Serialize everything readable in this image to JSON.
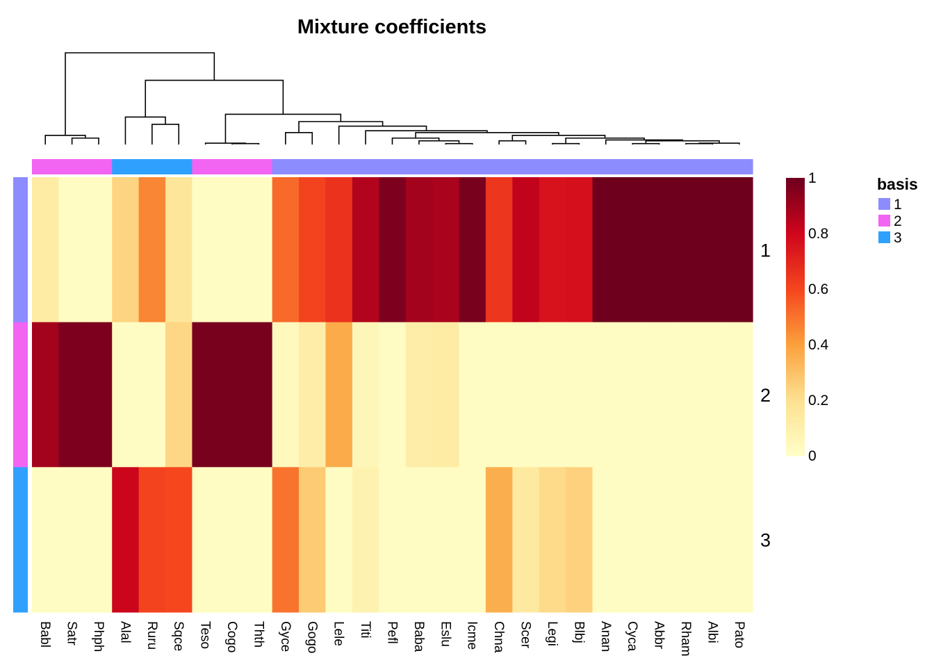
{
  "chart_data": {
    "type": "heatmap",
    "title": "Mixture coefficients",
    "columns": [
      "Babl",
      "Satr",
      "Phph",
      "Alal",
      "Ruru",
      "Sqce",
      "Teso",
      "Cogo",
      "Thth",
      "Gyce",
      "Gogo",
      "Lele",
      "Titi",
      "Pefl",
      "Baba",
      "Eslu",
      "Icme",
      "Chna",
      "Scer",
      "Legi",
      "Blbj",
      "Anan",
      "Cyca",
      "Abbr",
      "Rham",
      "Albi",
      "Pato"
    ],
    "rows": [
      "1",
      "2",
      "3"
    ],
    "column_basis": [
      "2",
      "2",
      "2",
      "3",
      "3",
      "3",
      "2",
      "2",
      "2",
      "1",
      "1",
      "1",
      "1",
      "1",
      "1",
      "1",
      "1",
      "1",
      "1",
      "1",
      "1",
      "1",
      "1",
      "1",
      "1",
      "1",
      "1"
    ],
    "values": [
      [
        0.13,
        0.02,
        0.02,
        0.24,
        0.46,
        0.17,
        0.02,
        0.02,
        0.02,
        0.52,
        0.61,
        0.66,
        0.86,
        0.97,
        0.89,
        0.88,
        0.98,
        0.65,
        0.83,
        0.76,
        0.77,
        1.0,
        1.0,
        1.0,
        1.0,
        1.0,
        1.0
      ],
      [
        0.89,
        0.97,
        0.97,
        0.02,
        0.02,
        0.23,
        0.98,
        0.98,
        0.98,
        0.04,
        0.12,
        0.37,
        0.06,
        0.02,
        0.12,
        0.13,
        0.02,
        0.02,
        0.02,
        0.02,
        0.02,
        0.02,
        0.02,
        0.02,
        0.02,
        0.02,
        0.02
      ],
      [
        0.02,
        0.02,
        0.02,
        0.81,
        0.61,
        0.6,
        0.02,
        0.02,
        0.02,
        0.5,
        0.27,
        0.02,
        0.09,
        0.02,
        0.02,
        0.02,
        0.02,
        0.36,
        0.15,
        0.22,
        0.25,
        0.02,
        0.02,
        0.02,
        0.02,
        0.02,
        0.02
      ]
    ],
    "colorscale": {
      "min": 0,
      "max": 1,
      "stops": [
        [
          0,
          "#FFFFC8"
        ],
        [
          0.2,
          "#FDE192"
        ],
        [
          0.4,
          "#FBA13D"
        ],
        [
          0.6,
          "#F5461E"
        ],
        [
          0.8,
          "#D0051C"
        ],
        [
          1,
          "#6E001E"
        ]
      ],
      "ticks": [
        "0",
        "0.2",
        "0.4",
        "0.6",
        "0.8",
        "1"
      ]
    },
    "legend": {
      "title": "basis",
      "items": [
        {
          "label": "1",
          "color": "#8C8CFF"
        },
        {
          "label": "2",
          "color": "#F264F2"
        },
        {
          "label": "3",
          "color": "#30A0FF"
        }
      ],
      "placement": "right"
    },
    "dendrogram": {
      "leaf_order": [
        "Babl",
        "Satr",
        "Phph",
        "Alal",
        "Ruru",
        "Sqce",
        "Teso",
        "Cogo",
        "Thth",
        "Gyce",
        "Gogo",
        "Lele",
        "Titi",
        "Pefl",
        "Baba",
        "Eslu",
        "Icme",
        "Chna",
        "Scer",
        "Legi",
        "Blbj",
        "Anan",
        "Cyca",
        "Abbr",
        "Rham",
        "Albi",
        "Pato"
      ],
      "merges": [
        {
          "a": "Satr",
          "b": "Phph",
          "h": 0.07
        },
        {
          "a": "Babl",
          "b": "m0",
          "h": 0.1
        },
        {
          "a": "Ruru",
          "b": "Sqce",
          "h": 0.22
        },
        {
          "a": "Alal",
          "b": "m2",
          "h": 0.3
        },
        {
          "a": "Cogo",
          "b": "Thth",
          "h": 0.01
        },
        {
          "a": "Teso",
          "b": "m4",
          "h": 0.015
        },
        {
          "a": "Gyce",
          "b": "Gogo",
          "h": 0.13
        },
        {
          "a": "Eslu",
          "b": "Icme",
          "h": 0.01
        },
        {
          "a": "Baba",
          "b": "m7",
          "h": 0.04
        },
        {
          "a": "Pefl",
          "b": "m8",
          "h": 0.07
        },
        {
          "a": "Chna",
          "b": "Scer",
          "h": 0.04
        },
        {
          "a": "Legi",
          "b": "Blbj",
          "h": 0.01
        },
        {
          "a": "Cyca",
          "b": "Abbr",
          "h": 0.01
        },
        {
          "a": "Rham",
          "b": "Albi",
          "h": 0.01
        },
        {
          "a": "m13",
          "b": "Pato",
          "h": 0.015
        },
        {
          "a": "m12",
          "b": "m14",
          "h": 0.04
        },
        {
          "a": "Anan",
          "b": "m15",
          "h": 0.05
        },
        {
          "a": "m11",
          "b": "m16",
          "h": 0.07
        },
        {
          "a": "m10",
          "b": "m17",
          "h": 0.1
        },
        {
          "a": "m9",
          "b": "m18",
          "h": 0.13
        },
        {
          "a": "Titi",
          "b": "m19",
          "h": 0.15
        },
        {
          "a": "Lele",
          "b": "m20",
          "h": 0.2
        },
        {
          "a": "m6",
          "b": "m21",
          "h": 0.25
        },
        {
          "a": "m5",
          "b": "m22",
          "h": 0.33
        },
        {
          "a": "m3",
          "b": "m23",
          "h": 0.7
        },
        {
          "a": "m1",
          "b": "m24",
          "h": 1.0
        }
      ]
    }
  }
}
